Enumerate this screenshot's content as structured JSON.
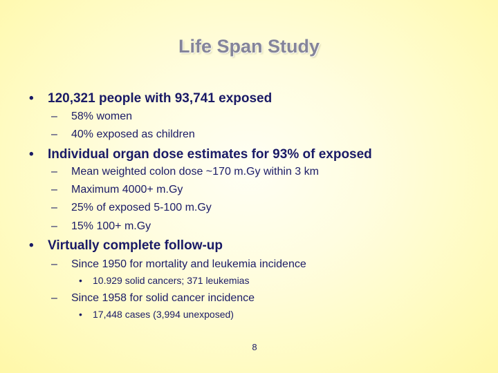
{
  "slide": {
    "title": "Life Span Study",
    "bullets": [
      {
        "text": "120,321 people with 93,741 exposed",
        "sub": [
          {
            "text": "58% women"
          },
          {
            "text": "40% exposed as children"
          }
        ]
      },
      {
        "text": "Individual organ dose estimates for 93% of exposed",
        "sub": [
          {
            "text": "Mean weighted colon dose ~170 m.Gy within 3 km"
          },
          {
            "text": "Maximum 4000+ m.Gy"
          },
          {
            "text": "25% of exposed 5-100 m.Gy"
          },
          {
            "text": "15% 100+ m.Gy"
          }
        ]
      },
      {
        "text": "Virtually complete follow-up",
        "sub": [
          {
            "text": "Since 1950 for mortality and leukemia incidence",
            "sub": [
              {
                "text": "10.929 solid cancers;  371 leukemias"
              }
            ]
          },
          {
            "text": "Since 1958 for solid cancer incidence",
            "sub": [
              {
                "text": "17,448 cases (3,994 unexposed)"
              }
            ]
          }
        ]
      }
    ],
    "page_number": "8"
  }
}
